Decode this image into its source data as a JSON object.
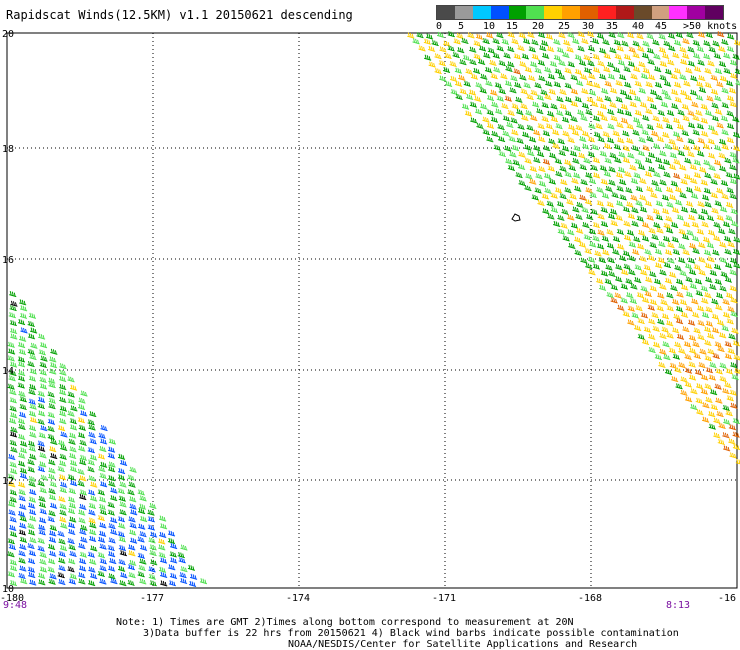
{
  "title": "Rapidscat Winds(12.5KM) v1.1 20150621 descending",
  "legend": {
    "swatches": [
      "#4a4a4a",
      "#9a9a9a",
      "#00c8ff",
      "#0050ff",
      "#00a000",
      "#50e050",
      "#ffd000",
      "#ffa000",
      "#e06000",
      "#ff2020",
      "#b01818",
      "#6a4a2a",
      "#d0a080",
      "#ff30ff",
      "#a000a0",
      "#600060"
    ],
    "labels": [
      "0",
      "5",
      "10",
      "15",
      "20",
      "25",
      "30",
      "35",
      "40",
      "45",
      ">50 knots"
    ]
  },
  "map": {
    "lat_ticks": [
      "20",
      "18",
      "16",
      "14",
      "12",
      "10"
    ],
    "lon_ticks": [
      "-180",
      "-177",
      "-174",
      "-171",
      "-168",
      "-16"
    ],
    "lat_range": [
      10,
      20
    ],
    "lon_range": [
      -180,
      -165
    ],
    "grid": "dotted",
    "swath_colors": {
      "right_dominant": [
        "#ffd000",
        "#00a000",
        "#50e050",
        "#ffa000",
        "#e06000"
      ],
      "left_dominant": [
        "#50e050",
        "#00a000",
        "#0050ff",
        "#ffd000",
        "#000000"
      ]
    }
  },
  "times": {
    "left": "9:48",
    "right": "8:13"
  },
  "notes": [
    "Note: 1) Times are GMT 2)Times along bottom correspond to measurement at 20N",
    "3)Data buffer is 22 hrs from 20150621 4) Black wind barbs indicate possible contamination",
    "NOAA/NESDIS/Center for Satellite Applications and Research"
  ]
}
